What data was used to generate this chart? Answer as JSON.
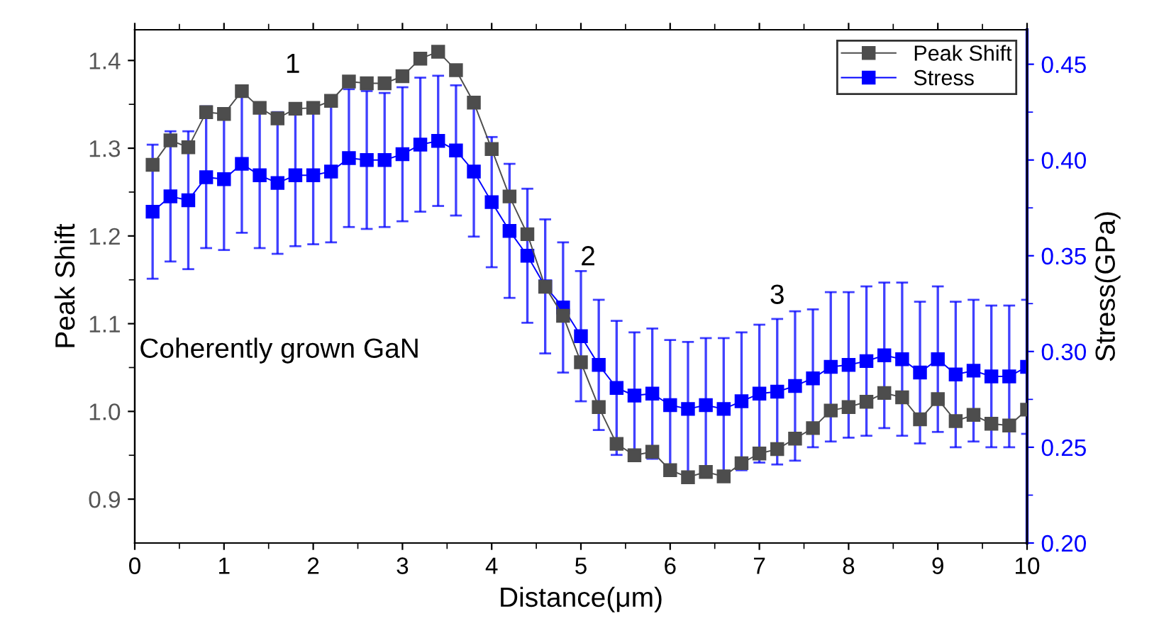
{
  "chart_data": {
    "type": "line",
    "xlabel": "Distance(μm)",
    "ylabel": "Peak Shift",
    "y2label": "Stress(GPa)",
    "x": [
      0.2,
      0.4,
      0.6,
      0.8,
      1.0,
      1.2,
      1.4,
      1.6,
      1.8,
      2.0,
      2.2,
      2.4,
      2.6,
      2.8,
      3.0,
      3.2,
      3.4,
      3.6,
      3.8,
      4.0,
      4.2,
      4.4,
      4.6,
      4.8,
      5.0,
      5.2,
      5.4,
      5.6,
      5.8,
      6.0,
      6.2,
      6.4,
      6.6,
      6.8,
      7.0,
      7.2,
      7.4,
      7.6,
      7.8,
      8.0,
      8.2,
      8.4,
      8.6,
      8.8,
      9.0,
      9.2,
      9.4,
      9.6,
      9.8,
      10.0
    ],
    "series": [
      {
        "name": "Peak Shift",
        "color": "#4d4d4d",
        "values": [
          1.281,
          1.309,
          1.301,
          1.341,
          1.339,
          1.365,
          1.346,
          1.334,
          1.345,
          1.346,
          1.354,
          1.376,
          1.374,
          1.374,
          1.382,
          1.402,
          1.41,
          1.389,
          1.352,
          1.299,
          1.245,
          1.202,
          1.142,
          1.109,
          1.056,
          1.005,
          0.963,
          0.95,
          0.954,
          0.933,
          0.925,
          0.931,
          0.926,
          0.941,
          0.952,
          0.957,
          0.969,
          0.981,
          1.001,
          1.005,
          1.011,
          1.021,
          1.016,
          0.991,
          1.014,
          0.989,
          0.996,
          0.986,
          0.984,
          1.002
        ]
      },
      {
        "name": "Stress",
        "color": "#0000ff",
        "axis": "y2",
        "values": [
          0.373,
          0.381,
          0.379,
          0.391,
          0.39,
          0.398,
          0.392,
          0.388,
          0.392,
          0.392,
          0.394,
          0.401,
          0.4,
          0.4,
          0.403,
          0.408,
          0.41,
          0.405,
          0.394,
          0.378,
          0.363,
          0.35,
          0.334,
          0.323,
          0.308,
          0.293,
          0.281,
          0.277,
          0.278,
          0.272,
          0.27,
          0.272,
          0.27,
          0.274,
          0.278,
          0.279,
          0.282,
          0.286,
          0.292,
          0.293,
          0.295,
          0.298,
          0.296,
          0.289,
          0.296,
          0.288,
          0.29,
          0.287,
          0.287,
          0.292
        ],
        "errors": [
          0.035,
          0.034,
          0.036,
          0.037,
          0.037,
          0.036,
          0.038,
          0.037,
          0.037,
          0.036,
          0.037,
          0.036,
          0.036,
          0.035,
          0.035,
          0.035,
          0.034,
          0.034,
          0.034,
          0.034,
          0.035,
          0.035,
          0.035,
          0.034,
          0.034,
          0.034,
          0.035,
          0.033,
          0.034,
          0.034,
          0.035,
          0.035,
          0.037,
          0.036,
          0.036,
          0.038,
          0.039,
          0.036,
          0.039,
          0.038,
          0.039,
          0.038,
          0.04,
          0.037,
          0.038,
          0.038,
          0.037,
          0.037,
          0.037,
          0.035
        ]
      }
    ],
    "xlim": [
      0,
      10
    ],
    "ylim": [
      0.85,
      1.435
    ],
    "y2lim": [
      0.2,
      0.468
    ],
    "xticks": [
      0,
      {
        "value": 0.5,
        "label": null
      },
      1,
      {
        "value": 1.5,
        "label": null
      },
      2,
      {
        "value": 2.5,
        "label": null
      },
      3,
      {
        "value": 3.5,
        "label": null
      },
      4,
      {
        "value": 4.5,
        "label": null
      },
      5,
      {
        "value": 5.5,
        "label": null
      },
      6,
      {
        "value": 6.5,
        "label": null
      },
      7,
      {
        "value": 7.5,
        "label": null
      },
      8,
      {
        "value": 8.5,
        "label": null
      },
      9,
      {
        "value": 9.5,
        "label": null
      },
      10
    ],
    "yticks": [
      0.9,
      {
        "value": 0.95,
        "label": null
      },
      {
        "value": 1.0,
        "label": "1.0"
      },
      {
        "value": 1.05,
        "label": null
      },
      1.1,
      {
        "value": 1.15,
        "label": null
      },
      1.2,
      {
        "value": 1.25,
        "label": null
      },
      1.3,
      {
        "value": 1.35,
        "label": null
      },
      1.4
    ],
    "y2ticks": [
      {
        "value": 0.2,
        "label": "0.20"
      },
      {
        "value": 0.225,
        "label": null
      },
      0.25,
      {
        "value": 0.275,
        "label": null
      },
      {
        "value": 0.3,
        "label": "0.30"
      },
      {
        "value": 0.325,
        "label": null
      },
      0.35,
      {
        "value": 0.375,
        "label": null
      },
      {
        "value": 0.4,
        "label": "0.40"
      },
      {
        "value": 0.425,
        "label": null
      },
      0.45
    ],
    "annotations": [
      "1",
      "2",
      "3",
      "Coherently grown GaN"
    ],
    "marker": "square",
    "line_style": "solid",
    "legend": "top right",
    "grid": false
  }
}
